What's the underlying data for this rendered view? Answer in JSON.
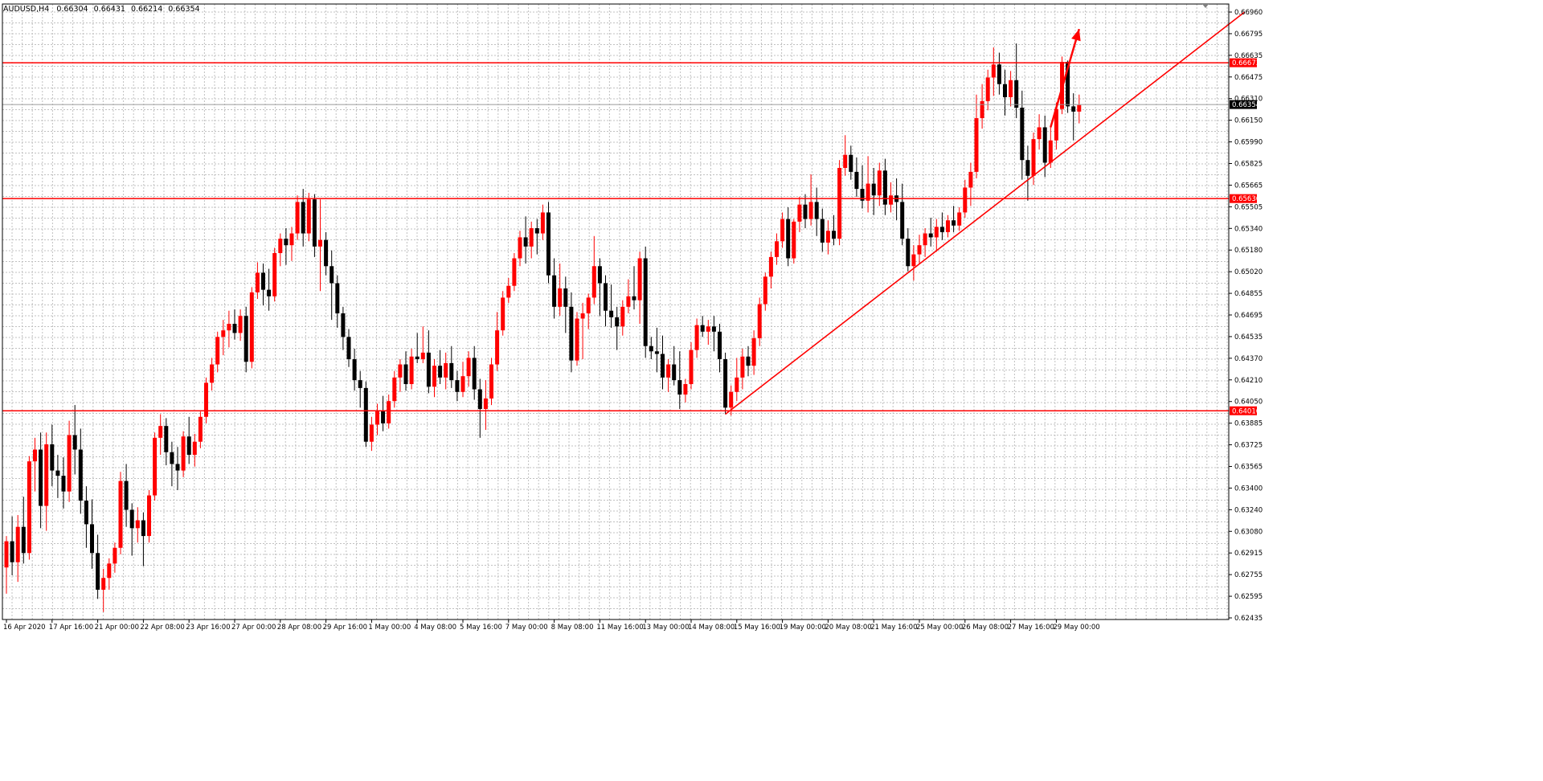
{
  "title": "AUDUSD,H4",
  "ohlc": {
    "open": "0.66304",
    "high": "0.66431",
    "low": "0.66214",
    "close": "0.66354"
  },
  "colors": {
    "background": "#ffffff",
    "grid": "#c0c0c0",
    "axis": "#000000",
    "bull_candle": "#ff0000",
    "bear_candle": "#000000",
    "level_line": "#ff0000",
    "trend_line": "#ff0000",
    "arrow": "#ff0000",
    "price_tag_bg": "#ff0000",
    "current_price_bg": "#000000",
    "label_text": "#000000"
  },
  "chart_data": {
    "type": "candlestick",
    "symbol": "AUDUSD",
    "timeframe": "H4",
    "ylim": [
      0.62435,
      0.6706
    ],
    "y_ticks": [
      "0.66960",
      "0.66795",
      "0.66635",
      "0.66475",
      "0.66310",
      "0.66150",
      "0.65990",
      "0.65825",
      "0.65665",
      "0.65505",
      "0.65340",
      "0.65180",
      "0.65020",
      "0.64855",
      "0.64695",
      "0.64535",
      "0.64370",
      "0.64210",
      "0.64050",
      "0.63885",
      "0.63725",
      "0.63565",
      "0.63400",
      "0.63240",
      "0.63080",
      "0.62915",
      "0.62755",
      "0.62595",
      "0.62435"
    ],
    "x_ticks": [
      "16 Apr 2020",
      "17 Apr 16:00",
      "21 Apr 00:00",
      "22 Apr 08:00",
      "23 Apr 16:00",
      "27 Apr 00:00",
      "28 Apr 08:00",
      "29 Apr 16:00",
      "1 May 00:00",
      "4 May 08:00",
      "5 May 16:00",
      "7 May 00:00",
      "8 May 08:00",
      "11 May 16:00",
      "13 May 00:00",
      "14 May 08:00",
      "15 May 16:00",
      "19 May 00:00",
      "20 May 08:00",
      "21 May 16:00",
      "25 May 00:00",
      "26 May 08:00",
      "27 May 16:00",
      "29 May 00:00"
    ],
    "bars_per_x_tick": 8,
    "horizontal_levels": [
      {
        "price": 0.66673,
        "label": "0.66673"
      },
      {
        "price": 0.65636,
        "label": "0.65636"
      },
      {
        "price": 0.64016,
        "label": "0.64016"
      }
    ],
    "current_price": {
      "price": 0.66354,
      "label": "0.66354"
    },
    "trend_line": {
      "from_bar": 126,
      "from_price": 0.6399,
      "to_bar": 217,
      "to_price": 0.6706
    },
    "arrow": {
      "from_bar": 183,
      "from_price": 0.6618,
      "to_bar": 188,
      "to_price": 0.6693
    },
    "candles": [
      [
        0.6282,
        0.6306,
        0.6262,
        0.6302
      ],
      [
        0.6302,
        0.6321,
        0.6276,
        0.6286
      ],
      [
        0.6286,
        0.6322,
        0.6271,
        0.6313
      ],
      [
        0.6313,
        0.6336,
        0.6285,
        0.6293
      ],
      [
        0.6293,
        0.6367,
        0.6288,
        0.6363
      ],
      [
        0.6363,
        0.6381,
        0.634,
        0.6372
      ],
      [
        0.6372,
        0.6385,
        0.6312,
        0.6329
      ],
      [
        0.6329,
        0.6385,
        0.631,
        0.6376
      ],
      [
        0.6376,
        0.6391,
        0.6344,
        0.6356
      ],
      [
        0.6356,
        0.6368,
        0.6335,
        0.6352
      ],
      [
        0.6352,
        0.6366,
        0.6327,
        0.634
      ],
      [
        0.634,
        0.6394,
        0.6332,
        0.6383
      ],
      [
        0.6383,
        0.6406,
        0.6353,
        0.6372
      ],
      [
        0.6372,
        0.6388,
        0.6323,
        0.6333
      ],
      [
        0.6333,
        0.6344,
        0.6297,
        0.6315
      ],
      [
        0.6315,
        0.6334,
        0.6281,
        0.6293
      ],
      [
        0.6293,
        0.6307,
        0.6258,
        0.6265
      ],
      [
        0.6265,
        0.6281,
        0.6248,
        0.6274
      ],
      [
        0.6274,
        0.6289,
        0.6265,
        0.6285
      ],
      [
        0.6285,
        0.6301,
        0.6278,
        0.6297
      ],
      [
        0.6297,
        0.6355,
        0.6292,
        0.6348
      ],
      [
        0.6348,
        0.6361,
        0.6313,
        0.6326
      ],
      [
        0.6326,
        0.6331,
        0.6291,
        0.6312
      ],
      [
        0.6312,
        0.6328,
        0.6301,
        0.6318
      ],
      [
        0.6318,
        0.6324,
        0.6283,
        0.6306
      ],
      [
        0.6306,
        0.6341,
        0.6301,
        0.6337
      ],
      [
        0.6337,
        0.6385,
        0.6333,
        0.6381
      ],
      [
        0.6381,
        0.6399,
        0.6368,
        0.639
      ],
      [
        0.639,
        0.6396,
        0.636,
        0.637
      ],
      [
        0.637,
        0.6378,
        0.6344,
        0.6361
      ],
      [
        0.6361,
        0.6374,
        0.6341,
        0.6356
      ],
      [
        0.6356,
        0.6386,
        0.6351,
        0.6382
      ],
      [
        0.6382,
        0.6397,
        0.6361,
        0.6368
      ],
      [
        0.6368,
        0.6384,
        0.6359,
        0.6378
      ],
      [
        0.6378,
        0.6401,
        0.6373,
        0.6397
      ],
      [
        0.6397,
        0.6427,
        0.6392,
        0.6423
      ],
      [
        0.6423,
        0.6442,
        0.6417,
        0.6437
      ],
      [
        0.6437,
        0.6462,
        0.6431,
        0.6458
      ],
      [
        0.6458,
        0.6471,
        0.6444,
        0.6463
      ],
      [
        0.6463,
        0.6478,
        0.645,
        0.6468
      ],
      [
        0.6468,
        0.6479,
        0.6456,
        0.6461
      ],
      [
        0.6461,
        0.6479,
        0.6455,
        0.6474
      ],
      [
        0.6474,
        0.6481,
        0.6431,
        0.6439
      ],
      [
        0.6439,
        0.6496,
        0.6434,
        0.6492
      ],
      [
        0.6492,
        0.6515,
        0.6487,
        0.6507
      ],
      [
        0.6507,
        0.6514,
        0.6482,
        0.6494
      ],
      [
        0.6494,
        0.651,
        0.6478,
        0.6489
      ],
      [
        0.6489,
        0.6526,
        0.6485,
        0.6522
      ],
      [
        0.6522,
        0.6537,
        0.6512,
        0.6533
      ],
      [
        0.6533,
        0.6541,
        0.6513,
        0.6528
      ],
      [
        0.6528,
        0.6542,
        0.6516,
        0.6537
      ],
      [
        0.6537,
        0.6566,
        0.6532,
        0.6561
      ],
      [
        0.6561,
        0.6571,
        0.6527,
        0.6537
      ],
      [
        0.6537,
        0.6568,
        0.6531,
        0.6563
      ],
      [
        0.6563,
        0.6567,
        0.6519,
        0.6527
      ],
      [
        0.6527,
        0.6563,
        0.6493,
        0.6532
      ],
      [
        0.6532,
        0.6538,
        0.6505,
        0.6512
      ],
      [
        0.6512,
        0.6524,
        0.6471,
        0.6499
      ],
      [
        0.6499,
        0.6505,
        0.6465,
        0.6476
      ],
      [
        0.6476,
        0.6481,
        0.6448,
        0.6458
      ],
      [
        0.6458,
        0.6464,
        0.6435,
        0.6441
      ],
      [
        0.6441,
        0.6449,
        0.6417,
        0.6425
      ],
      [
        0.6425,
        0.6432,
        0.6404,
        0.6419
      ],
      [
        0.6419,
        0.6424,
        0.6374,
        0.6378
      ],
      [
        0.6378,
        0.6397,
        0.6371,
        0.6391
      ],
      [
        0.6391,
        0.6407,
        0.6383,
        0.6402
      ],
      [
        0.6402,
        0.6413,
        0.6386,
        0.6392
      ],
      [
        0.6392,
        0.6414,
        0.6388,
        0.6409
      ],
      [
        0.6409,
        0.6432,
        0.6404,
        0.6427
      ],
      [
        0.6427,
        0.6441,
        0.6416,
        0.6437
      ],
      [
        0.6437,
        0.6447,
        0.6417,
        0.6422
      ],
      [
        0.6422,
        0.6449,
        0.6418,
        0.6443
      ],
      [
        0.6443,
        0.6461,
        0.6438,
        0.6441
      ],
      [
        0.6441,
        0.6466,
        0.6438,
        0.6446
      ],
      [
        0.6446,
        0.6463,
        0.6415,
        0.642
      ],
      [
        0.642,
        0.6441,
        0.6412,
        0.6436
      ],
      [
        0.6436,
        0.6448,
        0.6422,
        0.6427
      ],
      [
        0.6427,
        0.6446,
        0.6418,
        0.6438
      ],
      [
        0.6438,
        0.6451,
        0.6419,
        0.6425
      ],
      [
        0.6425,
        0.6432,
        0.6409,
        0.6416
      ],
      [
        0.6416,
        0.6439,
        0.6412,
        0.6428
      ],
      [
        0.6428,
        0.6447,
        0.642,
        0.6442
      ],
      [
        0.6442,
        0.6451,
        0.641,
        0.6418
      ],
      [
        0.6418,
        0.6426,
        0.6381,
        0.6403
      ],
      [
        0.6403,
        0.6425,
        0.6387,
        0.6411
      ],
      [
        0.6411,
        0.6442,
        0.6406,
        0.6437
      ],
      [
        0.6437,
        0.6477,
        0.6432,
        0.6463
      ],
      [
        0.6463,
        0.6493,
        0.6459,
        0.6488
      ],
      [
        0.6488,
        0.6503,
        0.6484,
        0.6497
      ],
      [
        0.6497,
        0.6522,
        0.6493,
        0.6518
      ],
      [
        0.6518,
        0.6539,
        0.6512,
        0.6534
      ],
      [
        0.6534,
        0.655,
        0.6514,
        0.6527
      ],
      [
        0.6527,
        0.6546,
        0.6518,
        0.6541
      ],
      [
        0.6541,
        0.6548,
        0.6521,
        0.6537
      ],
      [
        0.6537,
        0.6559,
        0.6532,
        0.6553
      ],
      [
        0.6553,
        0.6561,
        0.6499,
        0.6505
      ],
      [
        0.6505,
        0.6518,
        0.6472,
        0.6481
      ],
      [
        0.6481,
        0.6514,
        0.6474,
        0.6495
      ],
      [
        0.6495,
        0.6504,
        0.6461,
        0.6481
      ],
      [
        0.6481,
        0.6492,
        0.6431,
        0.644
      ],
      [
        0.644,
        0.6477,
        0.6436,
        0.6472
      ],
      [
        0.6472,
        0.6484,
        0.6441,
        0.6476
      ],
      [
        0.6476,
        0.6491,
        0.6464,
        0.6488
      ],
      [
        0.6488,
        0.6535,
        0.6483,
        0.6512
      ],
      [
        0.6512,
        0.6518,
        0.6474,
        0.6499
      ],
      [
        0.6499,
        0.6505,
        0.6466,
        0.6478
      ],
      [
        0.6478,
        0.6498,
        0.6465,
        0.6473
      ],
      [
        0.6473,
        0.6481,
        0.6448,
        0.6466
      ],
      [
        0.6466,
        0.6486,
        0.6459,
        0.6481
      ],
      [
        0.6481,
        0.6502,
        0.6476,
        0.6489
      ],
      [
        0.6489,
        0.6512,
        0.6479,
        0.6486
      ],
      [
        0.6486,
        0.6523,
        0.6468,
        0.6518
      ],
      [
        0.6518,
        0.6527,
        0.6442,
        0.6451
      ],
      [
        0.6451,
        0.6458,
        0.6441,
        0.6447
      ],
      [
        0.6447,
        0.6465,
        0.6431,
        0.6445
      ],
      [
        0.6445,
        0.6459,
        0.6418,
        0.6427
      ],
      [
        0.6427,
        0.6441,
        0.6416,
        0.6437
      ],
      [
        0.6437,
        0.6451,
        0.6421,
        0.6425
      ],
      [
        0.6425,
        0.6447,
        0.6403,
        0.6414
      ],
      [
        0.6414,
        0.6426,
        0.6408,
        0.6422
      ],
      [
        0.6422,
        0.6454,
        0.6418,
        0.6448
      ],
      [
        0.6448,
        0.6472,
        0.6442,
        0.6467
      ],
      [
        0.6467,
        0.6474,
        0.6458,
        0.6462
      ],
      [
        0.6462,
        0.6471,
        0.6452,
        0.6466
      ],
      [
        0.6466,
        0.6474,
        0.6447,
        0.6462
      ],
      [
        0.6462,
        0.6468,
        0.6431,
        0.6441
      ],
      [
        0.6441,
        0.6446,
        0.6399,
        0.6404
      ],
      [
        0.6404,
        0.6421,
        0.6398,
        0.6416
      ],
      [
        0.6416,
        0.6442,
        0.6409,
        0.6427
      ],
      [
        0.6427,
        0.6449,
        0.6418,
        0.6443
      ],
      [
        0.6443,
        0.6451,
        0.6428,
        0.6436
      ],
      [
        0.6436,
        0.6463,
        0.6429,
        0.6457
      ],
      [
        0.6457,
        0.6488,
        0.6451,
        0.6483
      ],
      [
        0.6483,
        0.6507,
        0.6478,
        0.6504
      ],
      [
        0.6504,
        0.6523,
        0.6495,
        0.6519
      ],
      [
        0.6519,
        0.6537,
        0.6513,
        0.6531
      ],
      [
        0.6531,
        0.6553,
        0.6526,
        0.6548
      ],
      [
        0.6548,
        0.6557,
        0.6512,
        0.6518
      ],
      [
        0.6518,
        0.6548,
        0.6514,
        0.6546
      ],
      [
        0.6546,
        0.6565,
        0.6538,
        0.6559
      ],
      [
        0.6559,
        0.6567,
        0.6541,
        0.6548
      ],
      [
        0.6548,
        0.6582,
        0.6543,
        0.6561
      ],
      [
        0.6561,
        0.6572,
        0.6535,
        0.6548
      ],
      [
        0.6548,
        0.6556,
        0.6523,
        0.653
      ],
      [
        0.653,
        0.6547,
        0.6521,
        0.6539
      ],
      [
        0.6539,
        0.6551,
        0.6528,
        0.6533
      ],
      [
        0.6533,
        0.6593,
        0.6528,
        0.6587
      ],
      [
        0.6587,
        0.6612,
        0.6581,
        0.6597
      ],
      [
        0.6597,
        0.6604,
        0.6578,
        0.6584
      ],
      [
        0.6584,
        0.6595,
        0.6565,
        0.6571
      ],
      [
        0.6571,
        0.6589,
        0.6556,
        0.6562
      ],
      [
        0.6562,
        0.6596,
        0.6553,
        0.6575
      ],
      [
        0.6575,
        0.6587,
        0.6551,
        0.6566
      ],
      [
        0.6566,
        0.6591,
        0.6558,
        0.6585
      ],
      [
        0.6585,
        0.6594,
        0.6551,
        0.6559
      ],
      [
        0.6559,
        0.6576,
        0.6553,
        0.6566
      ],
      [
        0.6566,
        0.6579,
        0.6547,
        0.6561
      ],
      [
        0.6561,
        0.6575,
        0.6528,
        0.6533
      ],
      [
        0.6533,
        0.6541,
        0.6508,
        0.6512
      ],
      [
        0.6512,
        0.6528,
        0.6501,
        0.6521
      ],
      [
        0.6521,
        0.6536,
        0.6514,
        0.6528
      ],
      [
        0.6528,
        0.6541,
        0.6519,
        0.6537
      ],
      [
        0.6537,
        0.6549,
        0.6527,
        0.6534
      ],
      [
        0.6534,
        0.6548,
        0.6523,
        0.6542
      ],
      [
        0.6542,
        0.6553,
        0.6532,
        0.6538
      ],
      [
        0.6538,
        0.6551,
        0.6534,
        0.6547
      ],
      [
        0.6547,
        0.6558,
        0.6538,
        0.6543
      ],
      [
        0.6543,
        0.6557,
        0.6539,
        0.6553
      ],
      [
        0.6553,
        0.6578,
        0.6549,
        0.6572
      ],
      [
        0.6572,
        0.6591,
        0.6558,
        0.6584
      ],
      [
        0.6584,
        0.6643,
        0.6579,
        0.6625
      ],
      [
        0.6625,
        0.6651,
        0.6617,
        0.6638
      ],
      [
        0.6638,
        0.6662,
        0.6631,
        0.6656
      ],
      [
        0.6656,
        0.6679,
        0.6642,
        0.6666
      ],
      [
        0.6666,
        0.6675,
        0.6643,
        0.6651
      ],
      [
        0.6651,
        0.6662,
        0.6627,
        0.6641
      ],
      [
        0.6641,
        0.6661,
        0.6634,
        0.6654
      ],
      [
        0.6654,
        0.6682,
        0.6625,
        0.6633
      ],
      [
        0.6633,
        0.6646,
        0.6578,
        0.6593
      ],
      [
        0.6593,
        0.6604,
        0.6562,
        0.6581
      ],
      [
        0.6581,
        0.6614,
        0.6574,
        0.6609
      ],
      [
        0.6609,
        0.6628,
        0.6601,
        0.6618
      ],
      [
        0.6618,
        0.6627,
        0.658,
        0.6591
      ],
      [
        0.6591,
        0.6619,
        0.6587,
        0.6608
      ],
      [
        0.6608,
        0.6637,
        0.6601,
        0.6632
      ],
      [
        0.6632,
        0.6672,
        0.6628,
        0.6668
      ],
      [
        0.6668,
        0.6669,
        0.6629,
        0.6634
      ],
      [
        0.6634,
        0.6644,
        0.6608,
        0.663
      ],
      [
        0.663,
        0.6643,
        0.6621,
        0.6635
      ]
    ]
  }
}
